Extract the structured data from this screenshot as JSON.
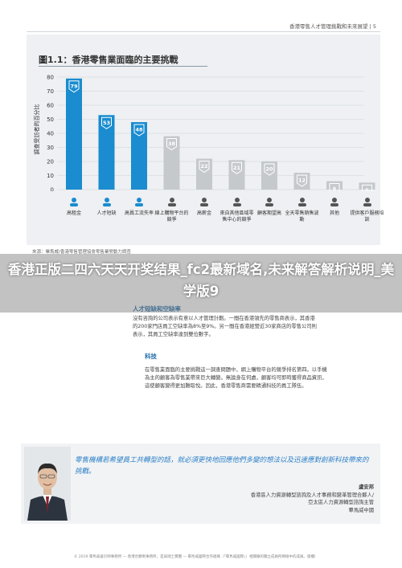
{
  "header": {
    "tag": "香港零售人才管理挑戰和未來展望 | 5"
  },
  "chart": {
    "title": "圖1.1：香港零售業面臨的主要挑戰",
    "ylabel": "調查受訪者的百分比"
  },
  "chart_data": {
    "type": "bar",
    "title": "圖1.1：香港零售業面臨的主要挑戰",
    "ylabel": "調查受訪者的百分比",
    "xlabel": "",
    "ylim": [
      0,
      80
    ],
    "yticks": [
      0,
      10,
      20,
      30,
      40,
      50,
      60,
      70,
      80
    ],
    "categories": [
      "高租金",
      "人才短缺",
      "高員工流失率",
      "線上購物平台的競爭",
      "高薪金",
      "來自其他區域零售中心的競爭",
      "顧客期望高",
      "全天零售銷售波動",
      "其他",
      "提供客戶服務培訓"
    ],
    "values": [
      79,
      53,
      48,
      38,
      22,
      21,
      20,
      12,
      6,
      5
    ],
    "highlight_color": "#1a8ccf",
    "base_color": "#c6c9cc",
    "grid": true,
    "icons": [
      "money-hand-icon",
      "people-group-icon",
      "staff-rotation-icon",
      "shopping-cart-icon",
      "coins-icon",
      "location-pin-icon",
      "shield-check-icon",
      "clock-icon",
      "chat-bubble-icon",
      "presenter-icon"
    ]
  },
  "source": "來源：畢馬威/香港零售管理協會零售業勞動力調查",
  "overlay": {
    "title": "香港正版二四六天天开奖结果_fc2最新域名,未来解答解析说明_美学版9"
  },
  "sections": {
    "hidden_heading": "人才短缺和空缺率",
    "p1": [
      "沒有咨詢的公司表示有意以人才管理計劃。一間在香港領先的零售商表示，其香港",
      "的200家門店員工空缺率為8%至9%。另一間在香港經營近30家商店的零售公司則",
      "表示，其員工空缺率達到雙位數字。"
    ],
    "tech_heading": "科技",
    "p2": [
      "在零售業面臨的主要挑戰這一調查問題中，網上購物平台的競爭排名第四。以手機",
      "為主的顧客為零售業帶來巨大轉變。無論身在何處，顧客均可即時獲得商品資訊，",
      "這使顧客變得更加難取悅。因此，香港零售商需要精通科技的員工隊伍。"
    ]
  },
  "quote": {
    "text": "零售機構若希望員工共轉型的話，就必須更快地回應他們多變的想法以及迅速應對創新科技帶來的挑戰。",
    "name": "盧安邦",
    "title_lines": [
      "香港區人力資源轉型諮詢及人才事務和變革管理合夥人/",
      "亞太區人力資源轉型諮詢主管",
      "畢馬威中國"
    ]
  },
  "footer": "© 2019 畢馬威會計師事務所 — 香港合夥制事務所，是與瑞士實體 — 畢馬威國際合作組織（「畢馬威國際」）相關聯的獨立成員所網絡中的成員。版權所有，不得轉載。"
}
